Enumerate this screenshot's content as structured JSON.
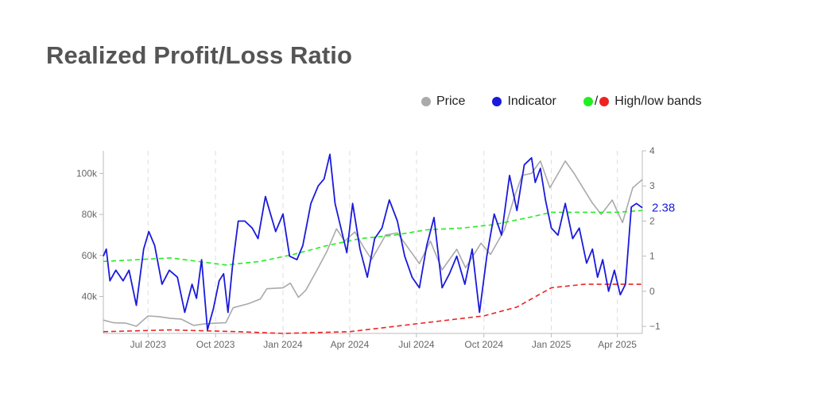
{
  "title": "Realized Profit/Loss Ratio",
  "legend": {
    "price": "Price",
    "indicator": "Indicator",
    "bands": "High/low bands",
    "separator": "/"
  },
  "colors": {
    "price": "#aaaaaa",
    "indicator": "#1a1adc",
    "high_band": "#22ee22",
    "low_band": "#ee2222",
    "grid": "#dddddd",
    "axis": "#bbbbbb"
  },
  "chart_data": {
    "type": "line",
    "title": "Realized Profit/Loss Ratio",
    "grid": "vertical dashed",
    "legend_position": "top-right",
    "x_range": [
      "2023-05-01",
      "2025-05-05"
    ],
    "x_ticks": [
      {
        "date": "2023-07-01",
        "label": "Jul 2023"
      },
      {
        "date": "2023-10-01",
        "label": "Oct 2023"
      },
      {
        "date": "2024-01-01",
        "label": "Jan 2024"
      },
      {
        "date": "2024-04-01",
        "label": "Apr 2024"
      },
      {
        "date": "2024-07-01",
        "label": "Jul 2024"
      },
      {
        "date": "2024-10-01",
        "label": "Oct 2024"
      },
      {
        "date": "2025-01-01",
        "label": "Jan 2025"
      },
      {
        "date": "2025-04-01",
        "label": "Apr 2025"
      }
    ],
    "y_left": {
      "range": [
        22000,
        111000
      ],
      "ticks": [
        {
          "v": 40000,
          "label": "40k"
        },
        {
          "v": 60000,
          "label": "60k"
        },
        {
          "v": 80000,
          "label": "80k"
        },
        {
          "v": 100000,
          "label": "100k"
        }
      ]
    },
    "y_right": {
      "range": [
        -1.2,
        4.0
      ],
      "ticks": [
        {
          "v": -1,
          "label": "−1"
        },
        {
          "v": 0,
          "label": "0"
        },
        {
          "v": 1,
          "label": "1"
        },
        {
          "v": 2,
          "label": "2"
        },
        {
          "v": 3,
          "label": "3"
        },
        {
          "v": 4,
          "label": "4"
        }
      ]
    },
    "last_value_label": "2.38",
    "series": [
      {
        "name": "Price",
        "axis": "left",
        "points": [
          [
            "2023-05-01",
            28500
          ],
          [
            "2023-05-15",
            27200
          ],
          [
            "2023-06-01",
            27000
          ],
          [
            "2023-06-15",
            25500
          ],
          [
            "2023-07-01",
            30500
          ],
          [
            "2023-07-15",
            30200
          ],
          [
            "2023-08-01",
            29300
          ],
          [
            "2023-08-15",
            29000
          ],
          [
            "2023-09-01",
            25900
          ],
          [
            "2023-09-15",
            26600
          ],
          [
            "2023-10-01",
            27000
          ],
          [
            "2023-10-15",
            27200
          ],
          [
            "2023-10-25",
            34500
          ],
          [
            "2023-11-15",
            36500
          ],
          [
            "2023-12-01",
            38700
          ],
          [
            "2023-12-10",
            43800
          ],
          [
            "2024-01-01",
            44200
          ],
          [
            "2024-01-11",
            46500
          ],
          [
            "2024-01-22",
            39600
          ],
          [
            "2024-02-01",
            43000
          ],
          [
            "2024-02-15",
            52000
          ],
          [
            "2024-03-01",
            62000
          ],
          [
            "2024-03-14",
            73000
          ],
          [
            "2024-03-25",
            67000
          ],
          [
            "2024-04-08",
            71500
          ],
          [
            "2024-04-20",
            64000
          ],
          [
            "2024-05-01",
            58000
          ],
          [
            "2024-05-20",
            70000
          ],
          [
            "2024-06-05",
            71000
          ],
          [
            "2024-06-25",
            61000
          ],
          [
            "2024-07-05",
            56000
          ],
          [
            "2024-07-20",
            67000
          ],
          [
            "2024-08-05",
            53000
          ],
          [
            "2024-08-25",
            63000
          ],
          [
            "2024-09-06",
            54000
          ],
          [
            "2024-09-27",
            66000
          ],
          [
            "2024-10-10",
            60500
          ],
          [
            "2024-10-29",
            72500
          ],
          [
            "2024-11-12",
            89000
          ],
          [
            "2024-11-22",
            99000
          ],
          [
            "2024-12-05",
            100000
          ],
          [
            "2024-12-17",
            106000
          ],
          [
            "2024-12-30",
            93000
          ],
          [
            "2025-01-20",
            106000
          ],
          [
            "2025-02-01",
            100000
          ],
          [
            "2025-02-25",
            86000
          ],
          [
            "2025-03-10",
            80000
          ],
          [
            "2025-03-25",
            87000
          ],
          [
            "2025-04-08",
            76000
          ],
          [
            "2025-04-22",
            93000
          ],
          [
            "2025-05-05",
            97000
          ]
        ]
      },
      {
        "name": "Indicator",
        "axis": "right",
        "points": [
          [
            "2023-05-01",
            1.0
          ],
          [
            "2023-05-05",
            1.2
          ],
          [
            "2023-05-10",
            0.3
          ],
          [
            "2023-05-18",
            0.6
          ],
          [
            "2023-05-28",
            0.3
          ],
          [
            "2023-06-05",
            0.6
          ],
          [
            "2023-06-15",
            -0.4
          ],
          [
            "2023-06-25",
            1.2
          ],
          [
            "2023-07-02",
            1.7
          ],
          [
            "2023-07-10",
            1.3
          ],
          [
            "2023-07-20",
            0.2
          ],
          [
            "2023-07-30",
            0.6
          ],
          [
            "2023-08-10",
            0.4
          ],
          [
            "2023-08-20",
            -0.6
          ],
          [
            "2023-08-30",
            0.2
          ],
          [
            "2023-09-05",
            -0.2
          ],
          [
            "2023-09-12",
            0.9
          ],
          [
            "2023-09-20",
            -1.1
          ],
          [
            "2023-09-28",
            -0.5
          ],
          [
            "2023-10-06",
            0.3
          ],
          [
            "2023-10-12",
            0.5
          ],
          [
            "2023-10-18",
            -0.6
          ],
          [
            "2023-10-24",
            0.7
          ],
          [
            "2023-11-01",
            2.0
          ],
          [
            "2023-11-10",
            2.0
          ],
          [
            "2023-11-20",
            1.8
          ],
          [
            "2023-11-28",
            1.5
          ],
          [
            "2023-12-08",
            2.7
          ],
          [
            "2023-12-15",
            2.2
          ],
          [
            "2023-12-22",
            1.7
          ],
          [
            "2024-01-01",
            2.2
          ],
          [
            "2024-01-10",
            1.0
          ],
          [
            "2024-01-20",
            0.9
          ],
          [
            "2024-01-28",
            1.3
          ],
          [
            "2024-02-08",
            2.5
          ],
          [
            "2024-02-18",
            3.0
          ],
          [
            "2024-02-26",
            3.2
          ],
          [
            "2024-03-05",
            3.9
          ],
          [
            "2024-03-12",
            2.5
          ],
          [
            "2024-03-20",
            1.8
          ],
          [
            "2024-03-28",
            1.1
          ],
          [
            "2024-04-05",
            2.5
          ],
          [
            "2024-04-15",
            1.2
          ],
          [
            "2024-04-25",
            0.4
          ],
          [
            "2024-05-05",
            1.5
          ],
          [
            "2024-05-15",
            1.8
          ],
          [
            "2024-05-25",
            2.6
          ],
          [
            "2024-06-05",
            2.0
          ],
          [
            "2024-06-15",
            1.0
          ],
          [
            "2024-06-25",
            0.4
          ],
          [
            "2024-07-05",
            0.1
          ],
          [
            "2024-07-15",
            1.3
          ],
          [
            "2024-07-25",
            2.1
          ],
          [
            "2024-08-05",
            0.1
          ],
          [
            "2024-08-15",
            0.5
          ],
          [
            "2024-08-25",
            1.0
          ],
          [
            "2024-09-05",
            0.2
          ],
          [
            "2024-09-15",
            1.2
          ],
          [
            "2024-09-25",
            -0.6
          ],
          [
            "2024-10-05",
            1.0
          ],
          [
            "2024-10-15",
            2.2
          ],
          [
            "2024-10-25",
            1.6
          ],
          [
            "2024-11-05",
            3.3
          ],
          [
            "2024-11-15",
            2.3
          ],
          [
            "2024-11-25",
            3.6
          ],
          [
            "2024-12-05",
            3.8
          ],
          [
            "2024-12-10",
            3.1
          ],
          [
            "2024-12-17",
            3.5
          ],
          [
            "2024-12-24",
            2.6
          ],
          [
            "2025-01-01",
            1.8
          ],
          [
            "2025-01-10",
            1.6
          ],
          [
            "2025-01-20",
            2.5
          ],
          [
            "2025-01-30",
            1.5
          ],
          [
            "2025-02-08",
            1.8
          ],
          [
            "2025-02-18",
            0.8
          ],
          [
            "2025-02-26",
            1.2
          ],
          [
            "2025-03-05",
            0.4
          ],
          [
            "2025-03-12",
            0.9
          ],
          [
            "2025-03-20",
            0.0
          ],
          [
            "2025-03-28",
            0.6
          ],
          [
            "2025-04-05",
            -0.1
          ],
          [
            "2025-04-12",
            0.2
          ],
          [
            "2025-04-20",
            2.4
          ],
          [
            "2025-04-27",
            2.5
          ],
          [
            "2025-05-05",
            2.38
          ]
        ]
      },
      {
        "name": "High band",
        "axis": "right",
        "style": "dashed",
        "points": [
          [
            "2023-05-01",
            0.85
          ],
          [
            "2023-08-01",
            0.95
          ],
          [
            "2023-10-15",
            0.75
          ],
          [
            "2023-12-01",
            0.85
          ],
          [
            "2024-01-15",
            1.05
          ],
          [
            "2024-03-01",
            1.3
          ],
          [
            "2024-04-15",
            1.5
          ],
          [
            "2024-06-01",
            1.6
          ],
          [
            "2024-07-15",
            1.75
          ],
          [
            "2024-09-01",
            1.8
          ],
          [
            "2024-10-15",
            1.9
          ],
          [
            "2024-12-01",
            2.1
          ],
          [
            "2025-01-01",
            2.25
          ],
          [
            "2025-02-15",
            2.25
          ],
          [
            "2025-04-01",
            2.25
          ],
          [
            "2025-05-05",
            2.3
          ]
        ]
      },
      {
        "name": "Low band",
        "axis": "right",
        "style": "dashed",
        "points": [
          [
            "2023-05-01",
            -1.15
          ],
          [
            "2023-08-01",
            -1.1
          ],
          [
            "2023-11-01",
            -1.15
          ],
          [
            "2024-01-01",
            -1.2
          ],
          [
            "2024-04-01",
            -1.15
          ],
          [
            "2024-06-01",
            -1.0
          ],
          [
            "2024-08-01",
            -0.85
          ],
          [
            "2024-10-01",
            -0.7
          ],
          [
            "2024-11-15",
            -0.45
          ],
          [
            "2025-01-01",
            0.1
          ],
          [
            "2025-02-15",
            0.2
          ],
          [
            "2025-04-01",
            0.2
          ],
          [
            "2025-05-05",
            0.2
          ]
        ]
      }
    ]
  }
}
